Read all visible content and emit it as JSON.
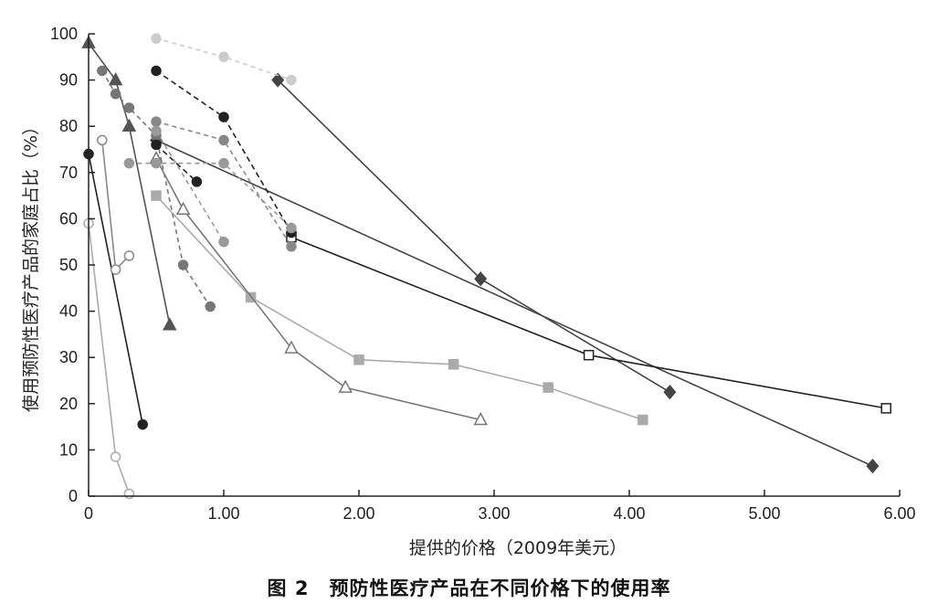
{
  "caption": "图 2　预防性医疗产品在不同价格下的使用率",
  "chart_data": {
    "type": "line",
    "title": "",
    "xlabel": "提供的价格（2009年美元）",
    "ylabel": "使用预防性医疗产品的家庭占比（%）",
    "xlim": [
      0,
      6
    ],
    "ylim": [
      0,
      100
    ],
    "x_ticks": [
      0,
      1,
      2,
      3,
      4,
      5,
      6
    ],
    "x_tick_labels": [
      "0",
      "1.00",
      "2.00",
      "3.00",
      "4.00",
      "5.00",
      "6.00"
    ],
    "y_ticks": [
      0,
      10,
      20,
      30,
      40,
      50,
      60,
      70,
      80,
      90,
      100
    ],
    "y_tick_labels": [
      "0",
      "10",
      "20",
      "30",
      "40",
      "50",
      "60",
      "70",
      "80",
      "90",
      "100"
    ],
    "grid": false,
    "legend": "none",
    "series": [
      {
        "marker": "diamond",
        "color": "#444444",
        "fill": "#444444",
        "dash": "",
        "x": [
          1.4,
          2.9,
          4.3
        ],
        "y": [
          90,
          47,
          22.5
        ]
      },
      {
        "marker": "diamond",
        "color": "#444444",
        "fill": "#444444",
        "dash": "",
        "x": [
          0.5,
          5.8
        ],
        "y": [
          77,
          6.5
        ]
      },
      {
        "marker": "square-open",
        "color": "#222222",
        "fill": "#ffffff",
        "dash": "",
        "x": [
          1.5,
          3.7,
          5.9
        ],
        "y": [
          56,
          30.5,
          19
        ]
      },
      {
        "marker": "square",
        "color": "#aaaaaa",
        "fill": "#aaaaaa",
        "dash": "",
        "x": [
          0.5,
          1.2,
          2.0,
          2.7,
          3.4,
          4.1
        ],
        "y": [
          65,
          43,
          29.5,
          28.5,
          23.5,
          16.5
        ]
      },
      {
        "marker": "triangle-open",
        "color": "#777777",
        "fill": "#ffffff",
        "dash": "",
        "x": [
          0.5,
          0.7,
          1.5,
          1.9,
          2.9
        ],
        "y": [
          73,
          62,
          32,
          23.5,
          16.5
        ]
      },
      {
        "marker": "triangle",
        "color": "#555555",
        "fill": "#555555",
        "dash": "",
        "x": [
          0.0,
          0.2,
          0.3,
          0.6
        ],
        "y": [
          98,
          90,
          80,
          37
        ]
      },
      {
        "marker": "circle",
        "color": "#222222",
        "fill": "#222222",
        "dash": "",
        "x": [
          0.0,
          0.4
        ],
        "y": [
          74,
          15.5
        ]
      },
      {
        "marker": "circle-open",
        "color": "#888888",
        "fill": "#ffffff",
        "dash": "",
        "x": [
          0.1,
          0.2,
          0.3
        ],
        "y": [
          77,
          49,
          52
        ]
      },
      {
        "marker": "circle-open",
        "color": "#aaaaaa",
        "fill": "#ffffff",
        "dash": "",
        "x": [
          0.0,
          0.2,
          0.3
        ],
        "y": [
          59,
          8.5,
          0.5
        ]
      },
      {
        "marker": "circle",
        "color": "#777777",
        "fill": "#777777",
        "dash": "5,4",
        "x": [
          0.1,
          0.2,
          0.3,
          0.5,
          0.7,
          0.9
        ],
        "y": [
          92,
          87,
          84,
          78,
          50,
          41
        ]
      },
      {
        "marker": "circle",
        "color": "#222222",
        "fill": "#222222",
        "dash": "6,4",
        "x": [
          0.5,
          1.0,
          1.5
        ],
        "y": [
          92,
          82,
          57
        ]
      },
      {
        "marker": "circle",
        "color": "#222222",
        "fill": "#222222",
        "dash": "6,4",
        "x": [
          0.5,
          0.8
        ],
        "y": [
          76,
          68
        ]
      },
      {
        "marker": "circle",
        "color": "#888888",
        "fill": "#888888",
        "dash": "5,4",
        "x": [
          0.5,
          1.0,
          1.5
        ],
        "y": [
          81,
          77,
          54
        ]
      },
      {
        "marker": "circle",
        "color": "#999999",
        "fill": "#999999",
        "dash": "5,4",
        "x": [
          0.3,
          0.5,
          1.0,
          1.5
        ],
        "y": [
          72,
          72,
          72,
          58
        ]
      },
      {
        "marker": "circle",
        "color": "#999999",
        "fill": "#999999",
        "dash": "5,4",
        "x": [
          0.5,
          1.0
        ],
        "y": [
          79,
          55
        ]
      },
      {
        "marker": "circle",
        "color": "#cccccc",
        "fill": "#cccccc",
        "dash": "5,4",
        "x": [
          0.5,
          1.0,
          1.5
        ],
        "y": [
          99,
          95,
          90
        ]
      }
    ]
  }
}
